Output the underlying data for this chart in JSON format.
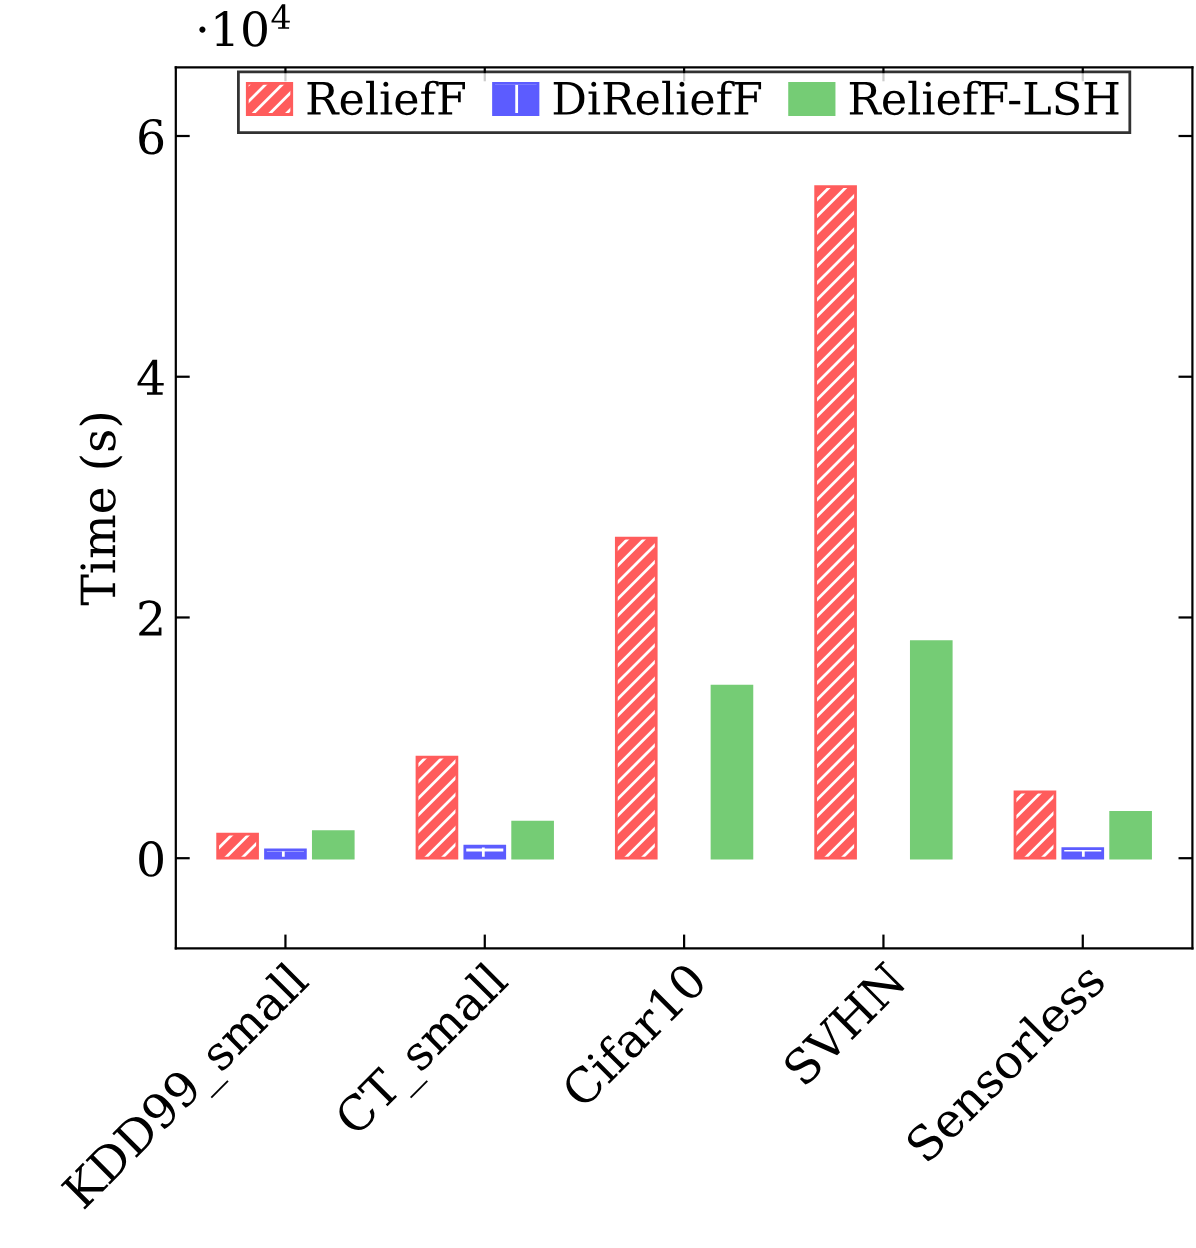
{
  "chart_data": {
    "type": "bar",
    "ylabel": "Time (s)",
    "annotations": [
      "·10$^{4}$"
    ],
    "categories": [
      "KDD99_small",
      "CT_small",
      "Cifar10",
      "SVHN",
      "Sensorless"
    ],
    "series": [
      {
        "name": "ReliefF",
        "color": "#ff4040",
        "values": [
          0.2,
          0.84,
          2.66,
          5.58,
          0.55
        ]
      },
      {
        "name": "DiReliefF",
        "color": "#4040ff",
        "values": [
          0.07,
          0.1,
          null,
          null,
          0.08
        ]
      },
      {
        "name": "ReliefF-LSH",
        "color": "#5ec45e",
        "values": [
          0.22,
          0.3,
          1.43,
          1.8,
          0.38
        ]
      }
    ],
    "ylim": [
      -0.75,
      6.57
    ],
    "yticks": [
      0,
      2,
      4,
      6
    ],
    "grid": false,
    "legend": "top"
  }
}
